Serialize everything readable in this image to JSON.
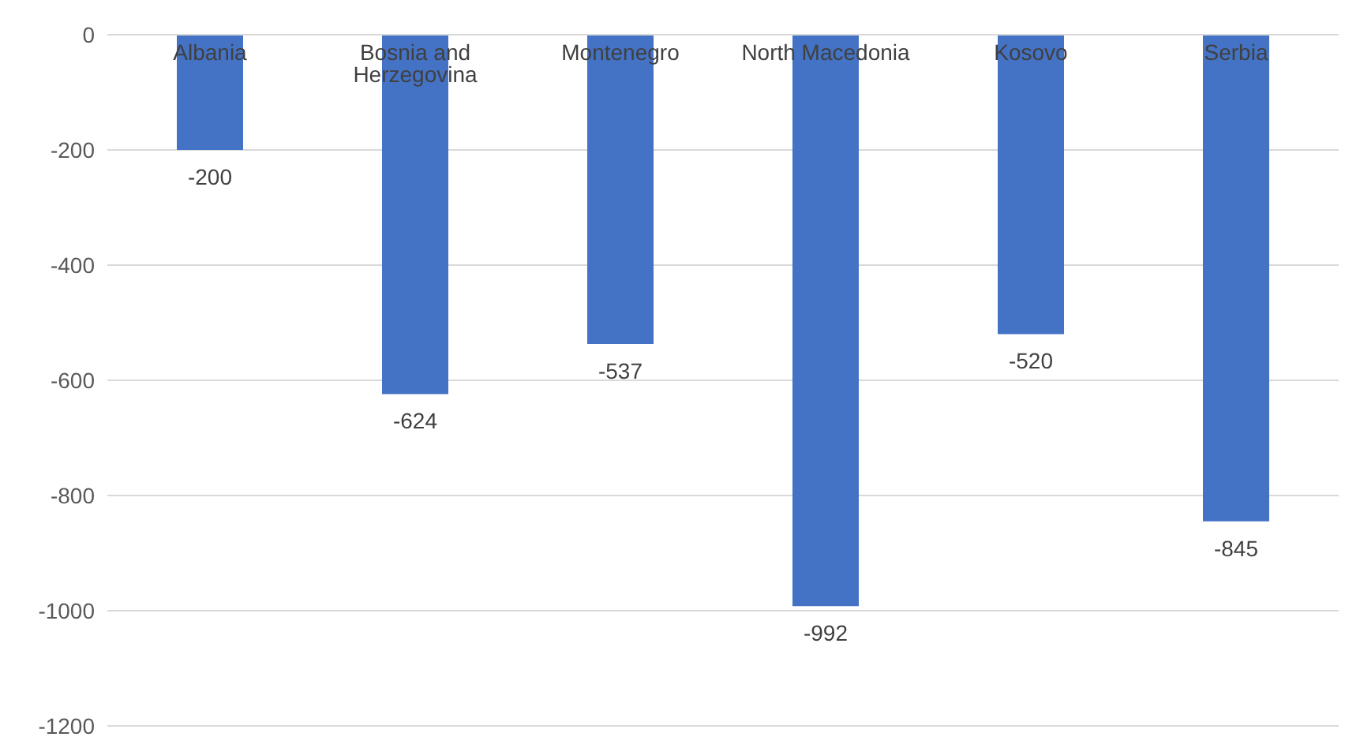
{
  "chart_data": {
    "type": "bar",
    "categories": [
      "Albania",
      "Bosnia and Herzegovina",
      "Montenegro",
      "North Macedonia",
      "Kosovo",
      "Serbia"
    ],
    "values": [
      -200,
      -624,
      -537,
      -992,
      -520,
      -845
    ],
    "color": "#4472c4",
    "ylim": [
      -1200,
      0
    ],
    "yticks": [
      -1200,
      -1000,
      -800,
      -600,
      -400,
      -200,
      0
    ],
    "grid": "y",
    "data_labels": true
  }
}
